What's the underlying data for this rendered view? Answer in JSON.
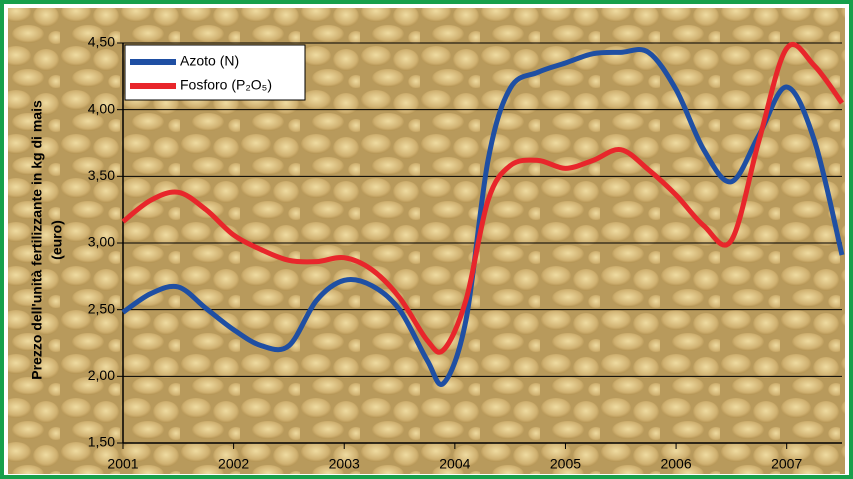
{
  "chart_data": {
    "type": "line",
    "ylabel": [
      "Prezzo dell'unità fertilizzante in kg di mais",
      "(euro)"
    ],
    "xlim": [
      2001,
      2007.5
    ],
    "xticks": [
      2001,
      2002,
      2003,
      2004,
      2005,
      2006,
      2007
    ],
    "ylim": [
      1.5,
      4.5
    ],
    "yticks": [
      {
        "value": 1.5,
        "label": "1,50"
      },
      {
        "value": 2,
        "label": "2,00"
      },
      {
        "value": 2.5,
        "label": "2,50"
      },
      {
        "value": 3,
        "label": "3,00"
      },
      {
        "value": 3.5,
        "label": "3,50"
      },
      {
        "value": 4,
        "label": "4,00"
      },
      {
        "value": 4.5,
        "label": "4,50"
      }
    ],
    "grid": true,
    "legend": "top-left",
    "x": [
      2001,
      2001.25,
      2001.5,
      2001.75,
      2002,
      2002.25,
      2002.5,
      2002.75,
      2003,
      2003.25,
      2003.5,
      2003.75,
      2003.9,
      2004.1,
      2004.3,
      2004.5,
      2004.75,
      2005,
      2005.25,
      2005.5,
      2005.75,
      2006,
      2006.25,
      2006.5,
      2006.75,
      2007,
      2007.25,
      2007.5
    ],
    "series": [
      {
        "name": "Azoto (N)",
        "color": "#1f4fa3",
        "values": [
          2.48,
          2.62,
          2.67,
          2.51,
          2.35,
          2.23,
          2.23,
          2.57,
          2.72,
          2.68,
          2.5,
          2.12,
          1.95,
          2.42,
          3.62,
          4.16,
          4.28,
          4.35,
          4.42,
          4.43,
          4.43,
          4.15,
          3.7,
          3.46,
          3.81,
          4.17,
          3.77,
          2.91
        ]
      },
      {
        "name": "Fosforo (P₂O₅)",
        "color": "#e8262b",
        "values": [
          3.16,
          3.32,
          3.38,
          3.25,
          3.06,
          2.95,
          2.87,
          2.86,
          2.89,
          2.8,
          2.59,
          2.27,
          2.2,
          2.57,
          3.32,
          3.58,
          3.62,
          3.56,
          3.62,
          3.7,
          3.55,
          3.36,
          3.13,
          3.02,
          3.77,
          4.46,
          4.33,
          4.05
        ]
      }
    ]
  }
}
